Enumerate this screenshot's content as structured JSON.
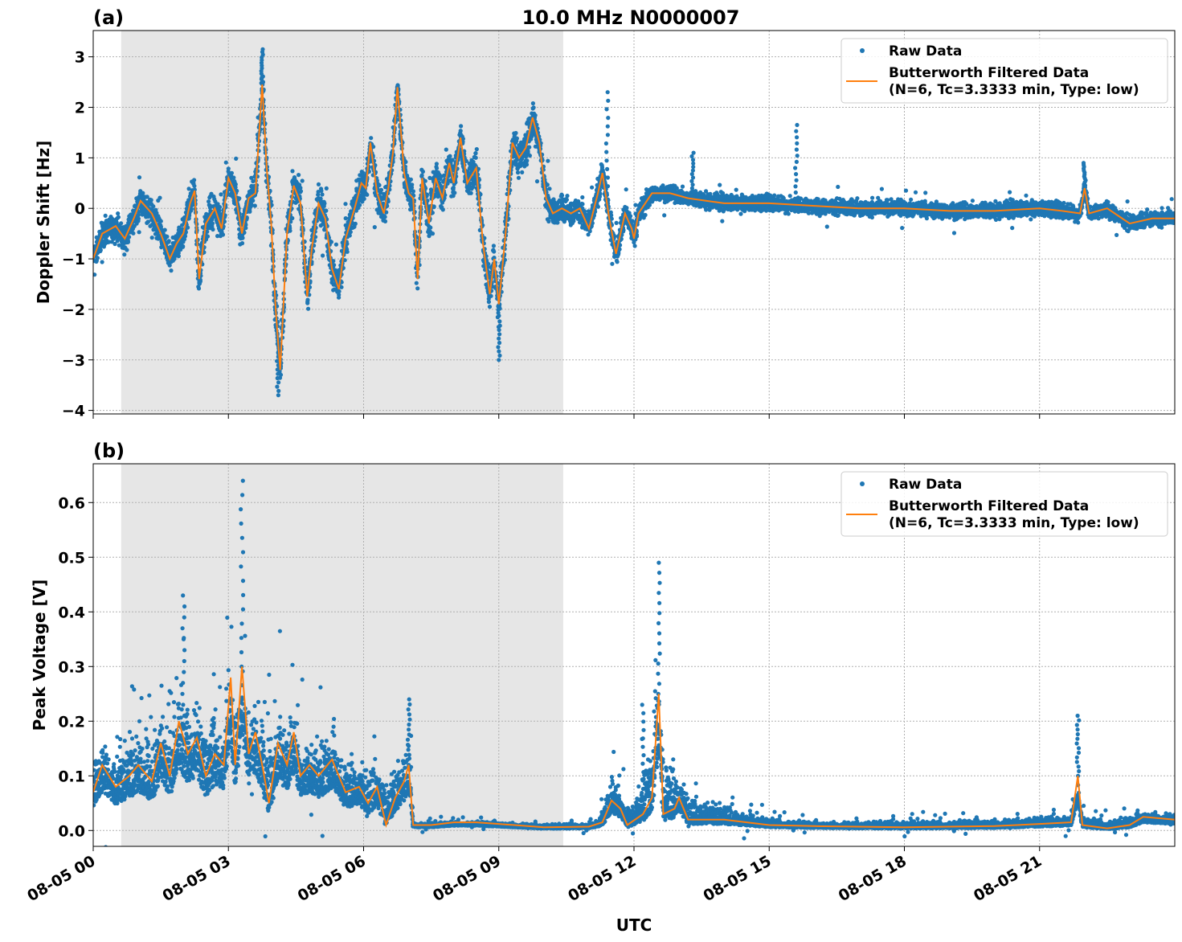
{
  "title": "10.0 MHz N0000007",
  "xlabel": "UTC",
  "colors": {
    "raw": "#1f77b4",
    "filtered": "#ff7f0e",
    "shade": "#e6e6e6"
  },
  "legend": {
    "raw": "Raw Data",
    "filtered_line1": "Butterworth Filtered Data",
    "filtered_line2": "(N=6, Tc=3.3333 min, Type: low)",
    "placement": "top-right"
  },
  "chart_data": [
    {
      "type": "scatter+line",
      "panel_label": "(a)",
      "ylabel": "Doppler Shift [Hz]",
      "x_unit": "hours after 08-05 00 UTC",
      "xlim": [
        0,
        24
      ],
      "ylim": [
        -4.07,
        3.52
      ],
      "grid": true,
      "x_ticks": [
        0,
        3,
        6,
        9,
        12,
        15,
        18,
        21
      ],
      "x_tick_labels": [
        "08-05 00",
        "08-05 03",
        "08-05 06",
        "08-05 09",
        "08-05 12",
        "08-05 15",
        "08-05 18",
        "08-05 21"
      ],
      "y_ticks": [
        -4,
        -3,
        -2,
        -1,
        0,
        1,
        2,
        3
      ],
      "y_tick_labels": [
        "−4",
        "−3",
        "−2",
        "−1",
        "0",
        "1",
        "2",
        "3"
      ],
      "shaded_span": [
        0.62,
        10.43
      ],
      "filtered": [
        [
          0,
          -1.0
        ],
        [
          0.2,
          -0.5
        ],
        [
          0.5,
          -0.35
        ],
        [
          0.7,
          -0.6
        ],
        [
          0.9,
          -0.2
        ],
        [
          1.05,
          0.15
        ],
        [
          1.3,
          -0.1
        ],
        [
          1.5,
          -0.5
        ],
        [
          1.7,
          -1.0
        ],
        [
          1.85,
          -0.7
        ],
        [
          2.0,
          -0.5
        ],
        [
          2.15,
          0.1
        ],
        [
          2.25,
          0.35
        ],
        [
          2.35,
          -1.4
        ],
        [
          2.5,
          -0.3
        ],
        [
          2.7,
          0.0
        ],
        [
          2.85,
          -0.4
        ],
        [
          3.0,
          0.6
        ],
        [
          3.15,
          0.3
        ],
        [
          3.3,
          -0.5
        ],
        [
          3.45,
          0.2
        ],
        [
          3.6,
          0.3
        ],
        [
          3.75,
          2.45
        ],
        [
          3.85,
          0.8
        ],
        [
          3.95,
          -0.3
        ],
        [
          4.05,
          -2.0
        ],
        [
          4.15,
          -3.2
        ],
        [
          4.3,
          -0.5
        ],
        [
          4.45,
          0.45
        ],
        [
          4.6,
          0.1
        ],
        [
          4.75,
          -1.75
        ],
        [
          4.85,
          -0.8
        ],
        [
          5.0,
          0.1
        ],
        [
          5.15,
          -0.2
        ],
        [
          5.3,
          -1.2
        ],
        [
          5.45,
          -1.6
        ],
        [
          5.6,
          -0.6
        ],
        [
          5.8,
          0.0
        ],
        [
          5.95,
          0.5
        ],
        [
          6.05,
          0.4
        ],
        [
          6.15,
          1.3
        ],
        [
          6.3,
          0.3
        ],
        [
          6.45,
          -0.1
        ],
        [
          6.55,
          0.4
        ],
        [
          6.65,
          1.1
        ],
        [
          6.75,
          2.4
        ],
        [
          6.9,
          0.7
        ],
        [
          7.0,
          0.3
        ],
        [
          7.1,
          0.2
        ],
        [
          7.2,
          -1.4
        ],
        [
          7.3,
          0.6
        ],
        [
          7.45,
          -0.3
        ],
        [
          7.6,
          0.6
        ],
        [
          7.75,
          0.2
        ],
        [
          7.9,
          0.9
        ],
        [
          8.0,
          0.5
        ],
        [
          8.15,
          1.4
        ],
        [
          8.3,
          0.5
        ],
        [
          8.5,
          0.8
        ],
        [
          8.65,
          -0.7
        ],
        [
          8.8,
          -1.7
        ],
        [
          8.9,
          -1.0
        ],
        [
          9.0,
          -1.9
        ],
        [
          9.15,
          -0.5
        ],
        [
          9.3,
          1.3
        ],
        [
          9.45,
          1.0
        ],
        [
          9.6,
          1.2
        ],
        [
          9.75,
          1.8
        ],
        [
          9.9,
          1.3
        ],
        [
          10.05,
          0.2
        ],
        [
          10.2,
          -0.1
        ],
        [
          10.4,
          0.0
        ],
        [
          10.6,
          -0.1
        ],
        [
          10.8,
          0.0
        ],
        [
          11.0,
          -0.4
        ],
        [
          11.2,
          0.3
        ],
        [
          11.3,
          0.7
        ],
        [
          11.45,
          -0.2
        ],
        [
          11.6,
          -0.9
        ],
        [
          11.8,
          -0.1
        ],
        [
          11.95,
          -0.4
        ],
        [
          12.0,
          -0.6
        ],
        [
          12.1,
          -0.1
        ],
        [
          12.4,
          0.3
        ],
        [
          12.8,
          0.3
        ],
        [
          13.2,
          0.2
        ],
        [
          14.0,
          0.1
        ],
        [
          15.0,
          0.1
        ],
        [
          16.0,
          0.05
        ],
        [
          17.0,
          0.0
        ],
        [
          18.0,
          0.0
        ],
        [
          19.0,
          -0.05
        ],
        [
          20.0,
          -0.05
        ],
        [
          21.0,
          0.0
        ],
        [
          21.5,
          -0.05
        ],
        [
          21.9,
          -0.1
        ],
        [
          22.0,
          0.4
        ],
        [
          22.1,
          -0.1
        ],
        [
          22.5,
          0.0
        ],
        [
          23.0,
          -0.3
        ],
        [
          23.5,
          -0.2
        ],
        [
          24.0,
          -0.2
        ]
      ],
      "raw_spread": [
        [
          0,
          0.35
        ],
        [
          3.5,
          0.45
        ],
        [
          4.2,
          0.5
        ],
        [
          8.5,
          0.45
        ],
        [
          9.5,
          0.6
        ],
        [
          10.4,
          0.35
        ],
        [
          12.2,
          0.35
        ],
        [
          12.4,
          0.22
        ],
        [
          24,
          0.22
        ]
      ],
      "raw_extremes": [
        [
          3.75,
          3.15
        ],
        [
          4.1,
          -3.7
        ],
        [
          9.0,
          -3.0
        ],
        [
          11.4,
          2.3
        ],
        [
          15.6,
          1.65
        ],
        [
          13.3,
          1.1
        ],
        [
          22.0,
          0.9
        ]
      ]
    },
    {
      "type": "scatter+line",
      "panel_label": "(b)",
      "ylabel": "Peak Voltage [V]",
      "x_unit": "hours after 08-05 00 UTC",
      "xlim": [
        0,
        24
      ],
      "ylim": [
        -0.029,
        0.671
      ],
      "grid": true,
      "x_ticks": [
        0,
        3,
        6,
        9,
        12,
        15,
        18,
        21
      ],
      "x_tick_labels": [
        "08-05 00",
        "08-05 03",
        "08-05 06",
        "08-05 09",
        "08-05 12",
        "08-05 15",
        "08-05 18",
        "08-05 21"
      ],
      "y_ticks": [
        0,
        0.1,
        0.2,
        0.3,
        0.4,
        0.5,
        0.6
      ],
      "y_tick_labels": [
        "0.0",
        "0.1",
        "0.2",
        "0.3",
        "0.4",
        "0.5",
        "0.6"
      ],
      "shaded_span": [
        0.62,
        10.43
      ],
      "filtered": [
        [
          0,
          0.07
        ],
        [
          0.2,
          0.12
        ],
        [
          0.5,
          0.08
        ],
        [
          0.8,
          0.1
        ],
        [
          1.0,
          0.12
        ],
        [
          1.3,
          0.09
        ],
        [
          1.5,
          0.16
        ],
        [
          1.7,
          0.1
        ],
        [
          1.9,
          0.2
        ],
        [
          2.1,
          0.14
        ],
        [
          2.3,
          0.17
        ],
        [
          2.5,
          0.1
        ],
        [
          2.7,
          0.14
        ],
        [
          2.9,
          0.12
        ],
        [
          3.05,
          0.28
        ],
        [
          3.15,
          0.12
        ],
        [
          3.3,
          0.3
        ],
        [
          3.45,
          0.14
        ],
        [
          3.6,
          0.18
        ],
        [
          3.75,
          0.12
        ],
        [
          3.9,
          0.05
        ],
        [
          4.1,
          0.16
        ],
        [
          4.3,
          0.12
        ],
        [
          4.45,
          0.18
        ],
        [
          4.6,
          0.1
        ],
        [
          4.8,
          0.12
        ],
        [
          5.0,
          0.1
        ],
        [
          5.3,
          0.13
        ],
        [
          5.6,
          0.07
        ],
        [
          5.9,
          0.08
        ],
        [
          6.1,
          0.05
        ],
        [
          6.3,
          0.08
        ],
        [
          6.5,
          0.01
        ],
        [
          6.7,
          0.06
        ],
        [
          6.9,
          0.09
        ],
        [
          7.0,
          0.12
        ],
        [
          7.1,
          0.01
        ],
        [
          7.5,
          0.01
        ],
        [
          8.0,
          0.015
        ],
        [
          8.5,
          0.015
        ],
        [
          9.0,
          0.012
        ],
        [
          10.0,
          0.006
        ],
        [
          11.0,
          0.007
        ],
        [
          11.3,
          0.015
        ],
        [
          11.5,
          0.055
        ],
        [
          11.7,
          0.04
        ],
        [
          11.85,
          0.01
        ],
        [
          12.2,
          0.03
        ],
        [
          12.4,
          0.06
        ],
        [
          12.55,
          0.25
        ],
        [
          12.65,
          0.03
        ],
        [
          12.9,
          0.04
        ],
        [
          13.0,
          0.06
        ],
        [
          13.2,
          0.02
        ],
        [
          14.0,
          0.02
        ],
        [
          15.0,
          0.01
        ],
        [
          16.0,
          0.008
        ],
        [
          18.0,
          0.006
        ],
        [
          20.0,
          0.008
        ],
        [
          21.0,
          0.012
        ],
        [
          21.7,
          0.015
        ],
        [
          21.85,
          0.1
        ],
        [
          21.95,
          0.01
        ],
        [
          22.5,
          0.004
        ],
        [
          23.0,
          0.01
        ],
        [
          23.3,
          0.025
        ],
        [
          24.0,
          0.02
        ]
      ],
      "raw_spread": [
        [
          0,
          0.07
        ],
        [
          3.0,
          0.12
        ],
        [
          3.5,
          0.1
        ],
        [
          6.5,
          0.06
        ],
        [
          7.05,
          0.06
        ],
        [
          7.1,
          0.006
        ],
        [
          11.2,
          0.006
        ],
        [
          11.5,
          0.05
        ],
        [
          12.0,
          0.03
        ],
        [
          12.5,
          0.12
        ],
        [
          13.2,
          0.04
        ],
        [
          14.5,
          0.015
        ],
        [
          16,
          0.008
        ],
        [
          24,
          0.015
        ]
      ],
      "raw_extremes": [
        [
          3.3,
          0.64
        ],
        [
          12.55,
          0.49
        ],
        [
          21.85,
          0.21
        ],
        [
          7.0,
          0.24
        ],
        [
          2.0,
          0.43
        ],
        [
          12.2,
          0.23
        ]
      ]
    }
  ]
}
